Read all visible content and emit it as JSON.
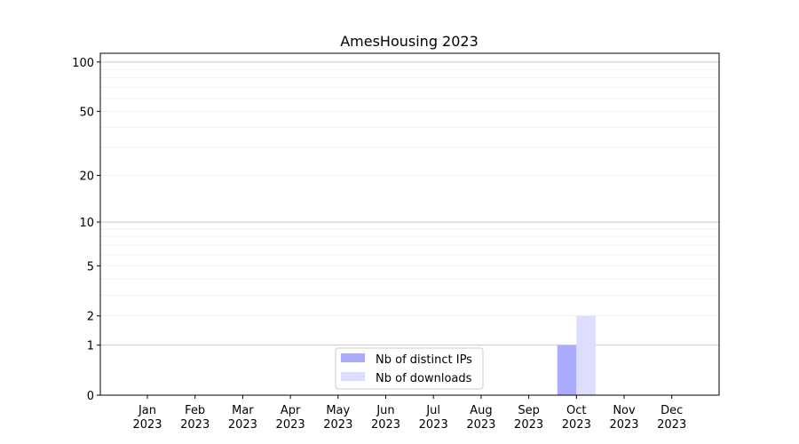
{
  "chart_data": {
    "type": "bar",
    "title": "AmesHousing 2023",
    "xlabel": "",
    "ylabel": "",
    "yscale": "symlog",
    "ylim": [
      0,
      113
    ],
    "grid": true,
    "legend_position": "lower-center",
    "categories": [
      "Jan\n2023",
      "Feb\n2023",
      "Mar\n2023",
      "Apr\n2023",
      "May\n2023",
      "Jun\n2023",
      "Jul\n2023",
      "Aug\n2023",
      "Sep\n2023",
      "Oct\n2023",
      "Nov\n2023",
      "Dec\n2023"
    ],
    "ytick_labels": [
      "0",
      "1",
      "2",
      "5",
      "10",
      "20",
      "50",
      "100"
    ],
    "yticks": [
      0,
      1,
      2,
      5,
      10,
      20,
      50,
      100
    ],
    "series": [
      {
        "name": "Nb of distinct IPs",
        "color": "#aaaaff",
        "values": [
          0,
          0,
          0,
          0,
          0,
          0,
          0,
          0,
          0,
          1,
          0,
          0
        ]
      },
      {
        "name": "Nb of downloads",
        "color": "#ddddff",
        "values": [
          0,
          0,
          0,
          0,
          0,
          0,
          0,
          0,
          0,
          2,
          0,
          0
        ]
      }
    ]
  }
}
